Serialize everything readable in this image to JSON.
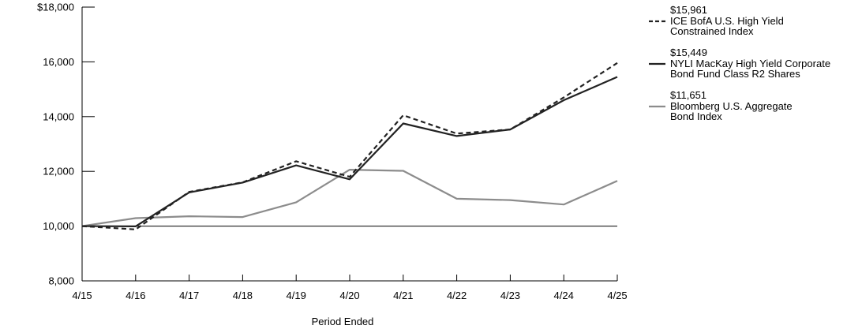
{
  "chart_data": {
    "type": "line",
    "xlabel": "Period Ended",
    "ylabel": "",
    "ylim": [
      8000,
      18000
    ],
    "y_ticks": [
      {
        "value": 18000,
        "label": "$18,000"
      },
      {
        "value": 16000,
        "label": "16,000"
      },
      {
        "value": 14000,
        "label": "14,000"
      },
      {
        "value": 12000,
        "label": "12,000"
      },
      {
        "value": 10000,
        "label": "10,000"
      },
      {
        "value": 8000,
        "label": "8,000"
      }
    ],
    "reference_line": 10000,
    "categories": [
      "4/15",
      "4/16",
      "4/17",
      "4/18",
      "4/19",
      "4/20",
      "4/21",
      "4/22",
      "4/23",
      "4/24",
      "4/25"
    ],
    "legend_placement": "right",
    "series": [
      {
        "name_lines": [
          "ICE BofA U.S. High Yield",
          "Constrained Index"
        ],
        "end_value_label": "$15,961",
        "color": "#222222",
        "style": "dashed",
        "values": [
          10000,
          9880,
          11250,
          11600,
          12370,
          11800,
          14050,
          13380,
          13530,
          14700,
          15961
        ]
      },
      {
        "name_lines": [
          "NYLI MacKay High Yield Corporate",
          "Bond Fund Class R2 Shares"
        ],
        "end_value_label": "$15,449",
        "color": "#222222",
        "style": "solid",
        "values": [
          10000,
          9990,
          11230,
          11590,
          12220,
          11710,
          13750,
          13290,
          13530,
          14600,
          15449
        ]
      },
      {
        "name_lines": [
          "Bloomberg U.S. Aggregate",
          "Bond Index"
        ],
        "end_value_label": "$11,651",
        "color": "#8c8c8c",
        "style": "solid",
        "values": [
          10000,
          10290,
          10360,
          10330,
          10870,
          12060,
          12020,
          11000,
          10950,
          10790,
          11651
        ]
      }
    ]
  }
}
